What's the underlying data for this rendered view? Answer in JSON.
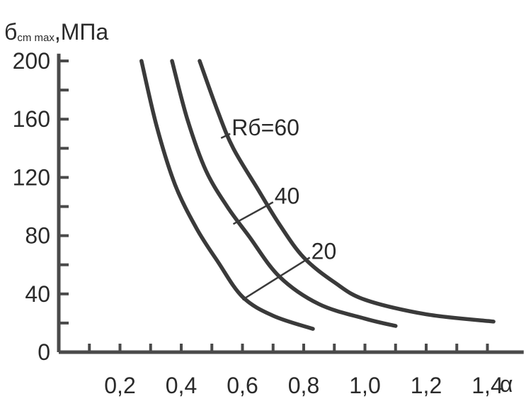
{
  "chart_data": {
    "type": "line",
    "ylabel": {
      "symbol": "б",
      "subscript": "cm max",
      "unit": ",МПа"
    },
    "xlabel": "α",
    "xlim": [
      0.0,
      1.5
    ],
    "ylim": [
      0,
      205
    ],
    "x_ticks": [
      0.1,
      0.2,
      0.3,
      0.4,
      0.5,
      0.6,
      0.7,
      0.8,
      0.9,
      1.0,
      1.1,
      1.2,
      1.3,
      1.4
    ],
    "x_tick_labels": [
      {
        "value": 0.2,
        "label": "0,2"
      },
      {
        "value": 0.4,
        "label": "0,4"
      },
      {
        "value": 0.6,
        "label": "0,6"
      },
      {
        "value": 0.8,
        "label": "0,8"
      },
      {
        "value": 1.0,
        "label": "1,0"
      },
      {
        "value": 1.2,
        "label": "1,2"
      },
      {
        "value": 1.4,
        "label": "1,4"
      }
    ],
    "y_ticks": [
      20,
      40,
      60,
      80,
      100,
      120,
      140,
      160,
      180,
      200
    ],
    "y_tick_labels": [
      {
        "value": 0,
        "label": "0"
      },
      {
        "value": 40,
        "label": "40"
      },
      {
        "value": 80,
        "label": "80"
      },
      {
        "value": 120,
        "label": "120"
      },
      {
        "value": 160,
        "label": "160"
      },
      {
        "value": 200,
        "label": "200"
      }
    ],
    "grid": false,
    "series": [
      {
        "name": "20",
        "color": "#3a3a3a",
        "points": [
          [
            0.27,
            200
          ],
          [
            0.32,
            155
          ],
          [
            0.38,
            115
          ],
          [
            0.45,
            85
          ],
          [
            0.52,
            62
          ],
          [
            0.6,
            38
          ],
          [
            0.7,
            25
          ],
          [
            0.83,
            16
          ]
        ]
      },
      {
        "name": "40",
        "color": "#3a3a3a",
        "points": [
          [
            0.37,
            200
          ],
          [
            0.42,
            160
          ],
          [
            0.48,
            125
          ],
          [
            0.55,
            100
          ],
          [
            0.62,
            80
          ],
          [
            0.72,
            52
          ],
          [
            0.85,
            33
          ],
          [
            1.0,
            23
          ],
          [
            1.1,
            18
          ]
        ]
      },
      {
        "name": "Rб=60",
        "color": "#3a3a3a",
        "points": [
          [
            0.46,
            200
          ],
          [
            0.52,
            165
          ],
          [
            0.57,
            140
          ],
          [
            0.65,
            112
          ],
          [
            0.72,
            88
          ],
          [
            0.8,
            65
          ],
          [
            0.9,
            48
          ],
          [
            1.0,
            36
          ],
          [
            1.2,
            26
          ],
          [
            1.42,
            21
          ]
        ]
      }
    ],
    "annotations": [
      {
        "series": "Rб=60",
        "text": "Rб=60",
        "leader_from": [
          0.53,
          147
        ],
        "text_at": [
          0.56,
          150
        ]
      },
      {
        "series": "40",
        "text": "40",
        "leader_from": [
          0.57,
          88
        ],
        "text_at": [
          0.7,
          103
        ]
      },
      {
        "series": "20",
        "text": "20",
        "leader_from": [
          0.6,
          36
        ],
        "text_at": [
          0.82,
          65
        ]
      }
    ]
  }
}
